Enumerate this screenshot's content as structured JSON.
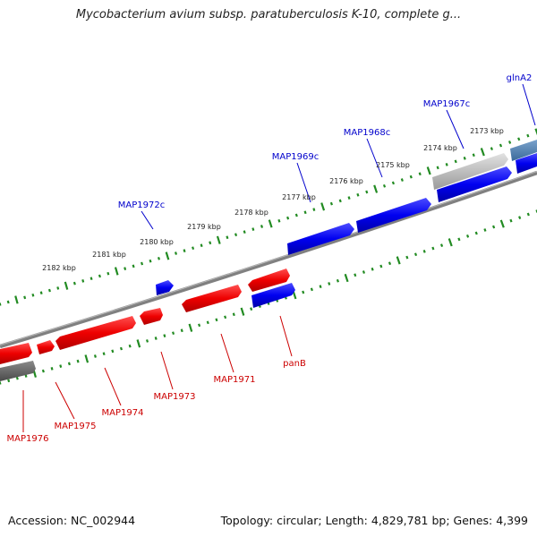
{
  "title": "Mycobacterium avium subsp. paratuberculosis K-10, complete g...",
  "footer": {
    "accession": "Accession: NC_002944",
    "summary": "Topology: circular; Length: 4,829,781 bp; Genes: 4,399"
  },
  "colors": {
    "forward": "#0000ff",
    "reverse": "#ff0000",
    "backbone": "#808080",
    "ticks": "#228b22",
    "forward_label": "#0000cc",
    "reverse_label": "#cc0000"
  },
  "ticks": {
    "outer_labels": [
      "2182 kbp",
      "2181 kbp",
      "2180 kbp",
      "2179 kbp",
      "2178 kbp",
      "2177 kbp",
      "2176 kbp",
      "2175 kbp",
      "2174 kbp",
      "2173 kbp"
    ]
  },
  "genes": {
    "forward": [
      "MAP1972c",
      "MAP1969c",
      "MAP1968c",
      "MAP1967c",
      "glnA2"
    ],
    "reverse": [
      "MAP1976",
      "MAP1975",
      "MAP1974",
      "MAP1973",
      "MAP1971",
      "panB"
    ]
  }
}
